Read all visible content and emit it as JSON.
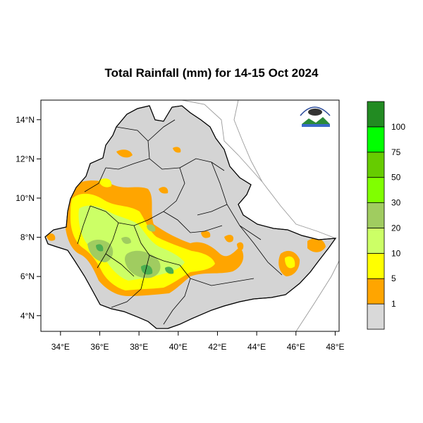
{
  "title": "Total Rainfall (mm) for 14-15 Oct 2024",
  "colors": {
    "land": "#d4d4d4",
    "border": "#000000",
    "neighbor_border": "#9a9a9a",
    "coast": "#7a7a7a"
  },
  "map": {
    "lon_range": [
      33,
      48.2
    ],
    "lat_range": [
      3.2,
      15
    ]
  },
  "x_ticks": [
    {
      "value": 34,
      "label": "34°E"
    },
    {
      "value": 36,
      "label": "36°E"
    },
    {
      "value": 38,
      "label": "38°E"
    },
    {
      "value": 40,
      "label": "40°E"
    },
    {
      "value": 42,
      "label": "42°E"
    },
    {
      "value": 44,
      "label": "44°E"
    },
    {
      "value": 46,
      "label": "46°E"
    },
    {
      "value": 48,
      "label": "48°E"
    }
  ],
  "y_ticks": [
    {
      "value": 4,
      "label": "4°N"
    },
    {
      "value": 6,
      "label": "6°N"
    },
    {
      "value": 8,
      "label": "8°N"
    },
    {
      "value": 10,
      "label": "10°N"
    },
    {
      "value": 12,
      "label": "12°N"
    },
    {
      "value": 14,
      "label": "14°N"
    }
  ],
  "legend": {
    "bins": [
      {
        "color": "#d9d9d9",
        "label": "1"
      },
      {
        "color": "#ffa500",
        "label": "5"
      },
      {
        "color": "#ffff00",
        "label": "10"
      },
      {
        "color": "#ccff66",
        "label": "20"
      },
      {
        "color": "#a0cc60",
        "label": "30"
      },
      {
        "color": "#80ff00",
        "label": "50"
      },
      {
        "color": "#66cc00",
        "label": "75"
      },
      {
        "color": "#00ff00",
        "label": "100"
      },
      {
        "color": "#228b22",
        "label": ""
      }
    ]
  }
}
